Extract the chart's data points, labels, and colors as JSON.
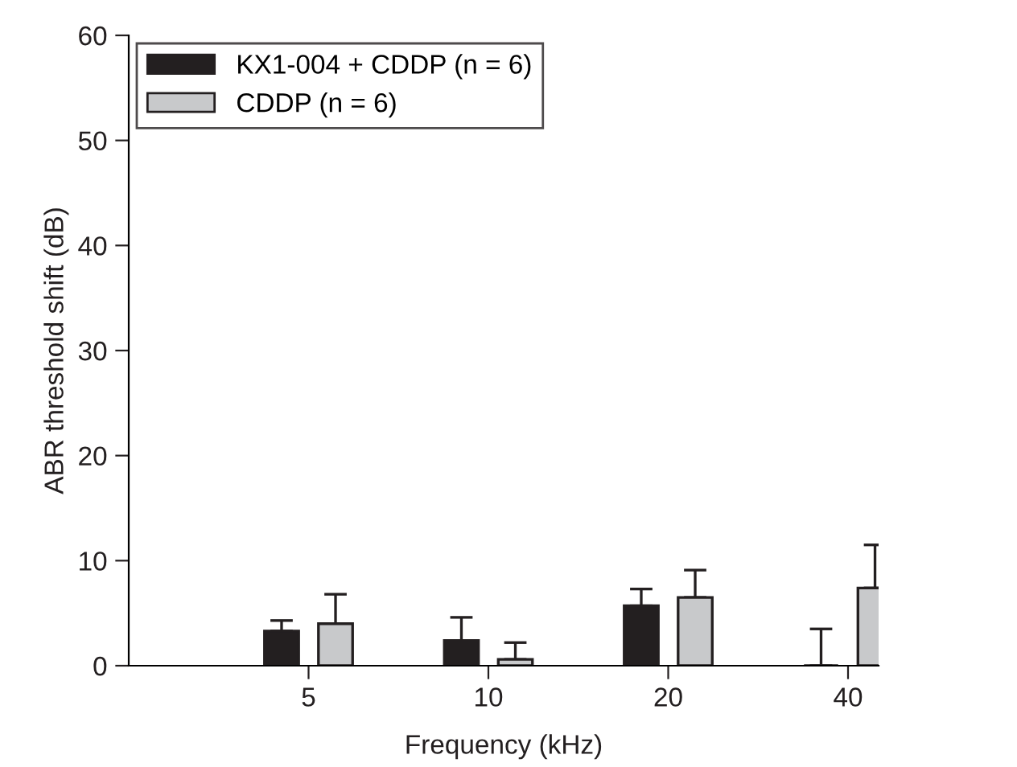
{
  "chart_data": {
    "type": "bar",
    "xlabel": "Frequency (kHz)",
    "ylabel": "ABR threshold shift (dB)",
    "categories": [
      "5",
      "10",
      "20",
      "40"
    ],
    "series": [
      {
        "name": "KX1-004 + CDDP (n = 6)",
        "color": "#231f20",
        "values": [
          3.3,
          2.4,
          5.7,
          0
        ],
        "errors": [
          [
            3.3,
            4.3
          ],
          [
            2.4,
            4.6
          ],
          [
            5.7,
            7.3
          ],
          [
            0,
            3.5
          ]
        ]
      },
      {
        "name": "CDDP (n = 6)",
        "color": "#c8c9cb",
        "values": [
          4.0,
          0.6,
          6.5,
          7.4
        ],
        "errors": [
          [
            4.0,
            6.8
          ],
          [
            0.6,
            2.2
          ],
          [
            6.5,
            9.1
          ],
          [
            7.4,
            11.5
          ]
        ]
      }
    ],
    "ylim": [
      0,
      60
    ],
    "yticks": [
      0,
      10,
      20,
      30,
      40,
      50,
      60
    ],
    "grid": false,
    "legend": "top left"
  }
}
